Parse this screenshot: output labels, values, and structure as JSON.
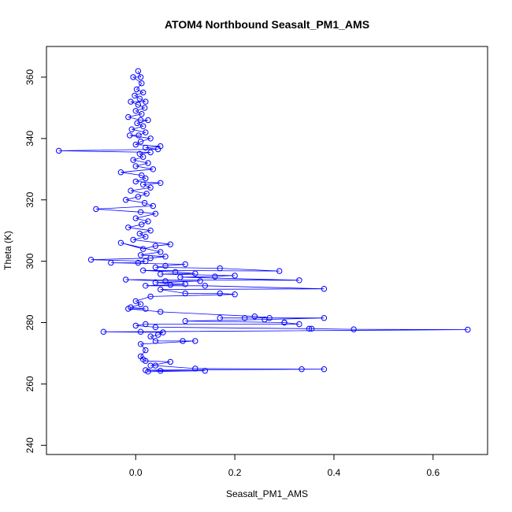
{
  "chart_data": {
    "type": "scatter",
    "title": "ATOM4 Northbound Seasalt_PM1_AMS",
    "xlabel": "Seasalt_PM1_AMS",
    "ylabel": "Theta (K)",
    "xlim": [
      -0.18,
      0.71
    ],
    "ylim": [
      237,
      370
    ],
    "xticks": [
      0.0,
      0.2,
      0.4,
      0.6
    ],
    "xtick_labels": [
      "0.0",
      "0.2",
      "0.4",
      "0.6"
    ],
    "yticks": [
      240,
      260,
      280,
      300,
      320,
      340,
      360
    ],
    "ytick_labels": [
      "240",
      "260",
      "280",
      "300",
      "320",
      "340",
      "360"
    ],
    "grid": false,
    "legend": "none",
    "marker": "open-circle",
    "connect_points": true,
    "color": "#0000ff",
    "series": [
      {
        "values": [
          [
            0.005,
            362
          ],
          [
            0.01,
            360
          ],
          [
            -0.005,
            360
          ],
          [
            0.012,
            358
          ],
          [
            0.002,
            356
          ],
          [
            0.015,
            355
          ],
          [
            -0.002,
            354
          ],
          [
            0.008,
            353
          ],
          [
            0.02,
            352
          ],
          [
            -0.01,
            352
          ],
          [
            0.005,
            351
          ],
          [
            0.018,
            350
          ],
          [
            0.0,
            349
          ],
          [
            0.012,
            348
          ],
          [
            -0.015,
            347
          ],
          [
            0.01,
            346
          ],
          [
            0.025,
            346
          ],
          [
            0.003,
            345
          ],
          [
            0.015,
            344
          ],
          [
            -0.008,
            343
          ],
          [
            0.02,
            342
          ],
          [
            0.006,
            341
          ],
          [
            -0.012,
            341
          ],
          [
            0.03,
            340
          ],
          [
            0.01,
            339
          ],
          [
            0.0,
            338
          ],
          [
            0.05,
            337.5
          ],
          [
            0.02,
            337
          ],
          [
            0.045,
            336.5
          ],
          [
            -0.155,
            336
          ],
          [
            0.03,
            335.5
          ],
          [
            0.008,
            335
          ],
          [
            0.015,
            334
          ],
          [
            -0.005,
            333
          ],
          [
            0.025,
            332
          ],
          [
            0.0,
            331
          ],
          [
            0.035,
            330
          ],
          [
            -0.03,
            329
          ],
          [
            0.012,
            328
          ],
          [
            0.02,
            327
          ],
          [
            0.0,
            326
          ],
          [
            0.05,
            325.5
          ],
          [
            0.015,
            325
          ],
          [
            0.03,
            324
          ],
          [
            -0.01,
            323
          ],
          [
            0.022,
            322
          ],
          [
            0.005,
            321
          ],
          [
            -0.02,
            320
          ],
          [
            0.018,
            319
          ],
          [
            0.035,
            318
          ],
          [
            -0.08,
            317
          ],
          [
            0.01,
            316
          ],
          [
            0.04,
            315.5
          ],
          [
            0.0,
            314
          ],
          [
            0.025,
            313
          ],
          [
            0.012,
            312
          ],
          [
            -0.015,
            311
          ],
          [
            0.03,
            310
          ],
          [
            0.008,
            309
          ],
          [
            0.02,
            308
          ],
          [
            -0.005,
            307
          ],
          [
            0.07,
            305.5
          ],
          [
            0.04,
            305
          ],
          [
            0.015,
            304
          ],
          [
            -0.03,
            306
          ],
          [
            0.05,
            303
          ],
          [
            0.01,
            302
          ],
          [
            0.06,
            301.5
          ],
          [
            0.03,
            301
          ],
          [
            -0.09,
            300.5
          ],
          [
            0.02,
            300
          ],
          [
            0.005,
            299.5
          ],
          [
            -0.05,
            299.5
          ],
          [
            0.1,
            299
          ],
          [
            0.06,
            298.5
          ],
          [
            0.04,
            298
          ],
          [
            0.17,
            297.7
          ],
          [
            0.29,
            296.8
          ],
          [
            0.015,
            297
          ],
          [
            0.08,
            296.5
          ],
          [
            0.12,
            296
          ],
          [
            0.05,
            295.8
          ],
          [
            0.2,
            295.3
          ],
          [
            0.16,
            295
          ],
          [
            0.09,
            294.8
          ],
          [
            0.33,
            293.8
          ],
          [
            -0.02,
            294
          ],
          [
            0.06,
            293.5
          ],
          [
            0.13,
            293.5
          ],
          [
            0.04,
            293
          ],
          [
            0.1,
            292.5
          ],
          [
            0.07,
            292.3
          ],
          [
            0.02,
            292
          ],
          [
            0.14,
            292
          ],
          [
            0.38,
            291
          ],
          [
            0.05,
            290.8
          ],
          [
            0.1,
            289.5
          ],
          [
            0.17,
            289.5
          ],
          [
            0.2,
            289.2
          ],
          [
            0.03,
            288.5
          ],
          [
            0.0,
            287
          ],
          [
            0.01,
            286
          ],
          [
            -0.01,
            285
          ],
          [
            0.02,
            284.5
          ],
          [
            -0.015,
            284.5
          ],
          [
            0.05,
            283.5
          ],
          [
            0.24,
            282
          ],
          [
            0.27,
            281.5
          ],
          [
            0.17,
            281.5
          ],
          [
            0.22,
            281.5
          ],
          [
            0.38,
            281.5
          ],
          [
            0.26,
            281
          ],
          [
            0.1,
            280.5
          ],
          [
            0.3,
            280
          ],
          [
            0.3,
            280
          ],
          [
            0.33,
            279.5
          ],
          [
            0.02,
            279.5
          ],
          [
            0.0,
            279
          ],
          [
            0.04,
            278.5
          ],
          [
            0.35,
            278
          ],
          [
            0.355,
            278
          ],
          [
            0.44,
            277.8
          ],
          [
            0.67,
            277.7
          ],
          [
            0.01,
            277
          ],
          [
            -0.065,
            277
          ],
          [
            0.055,
            276.8
          ],
          [
            0.045,
            276
          ],
          [
            0.03,
            275.5
          ],
          [
            0.04,
            274
          ],
          [
            0.095,
            274
          ],
          [
            0.12,
            274
          ],
          [
            0.01,
            273
          ],
          [
            0.02,
            271
          ],
          [
            0.01,
            269
          ],
          [
            0.015,
            268
          ],
          [
            0.02,
            267.5
          ],
          [
            0.07,
            267.2
          ],
          [
            0.03,
            266
          ],
          [
            0.04,
            266
          ],
          [
            0.12,
            265
          ],
          [
            0.335,
            264.8
          ],
          [
            0.38,
            264.8
          ],
          [
            0.02,
            264.5
          ],
          [
            0.05,
            264.3
          ],
          [
            0.14,
            264.3
          ],
          [
            0.025,
            264
          ]
        ]
      }
    ]
  }
}
